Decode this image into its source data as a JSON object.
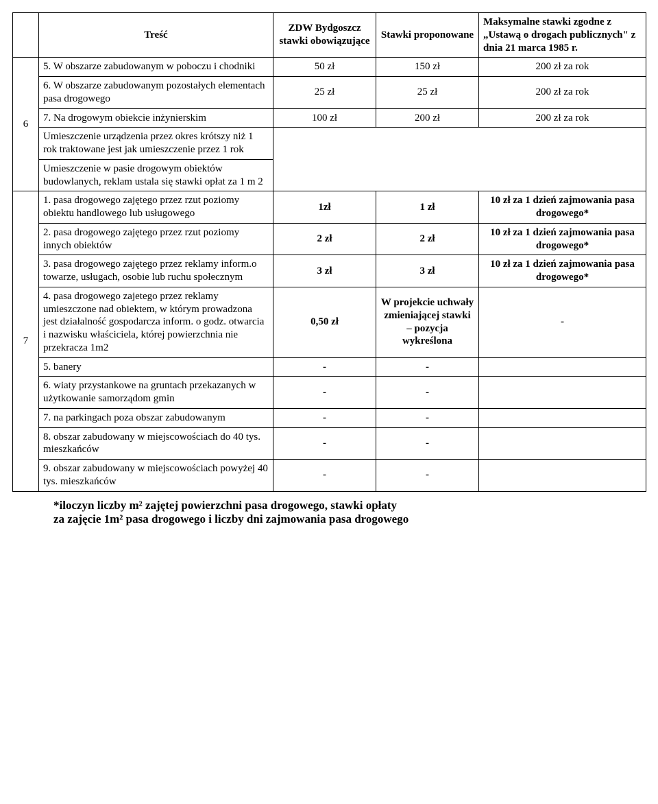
{
  "header": {
    "col_tresc": "Treść",
    "col_zdw": "ZDW Bydgoszcz stawki obowiązujące",
    "col_prop": "Stawki proponowane",
    "col_max": "Maksymalne stawki zgodne z „Ustawą o drogach publicznych\" z dnia 21 marca 1985 r."
  },
  "group6": {
    "num": "6",
    "items": {
      "i5": {
        "label": "5. W obszarze zabudowanym w poboczu i chodniki",
        "zdw": "50 zł",
        "prop": "150 zł",
        "max": "200 zł za rok"
      },
      "i6": {
        "label": "6. W obszarze zabudowanym pozostałych elementach pasa drogowego",
        "zdw": "25 zł",
        "prop": "25 zł",
        "max": "200 zł za rok"
      },
      "i7": {
        "label": "7. Na drogowym obiekcie inżynierskim",
        "zdw": "100 zł",
        "prop": "200 zł",
        "max": "200 zł za rok"
      }
    },
    "note1": "Umieszczenie urządzenia przez okres krótszy niż 1 rok traktowane jest jak umieszczenie przez 1 rok",
    "note2": "Umieszczenie w pasie drogowym obiektów budowlanych, reklam ustala się stawki opłat za 1 m 2"
  },
  "group7": {
    "num": "7",
    "items": {
      "i1": {
        "label": "1. pasa drogowego zajętego przez rzut poziomy obiektu handlowego lub usługowego",
        "zdw": "1zł",
        "prop": "1 zł",
        "max": "10 zł za 1 dzień zajmowania pasa drogowego*"
      },
      "i2": {
        "label": "2. pasa drogowego zajętego przez rzut poziomy innych obiektów",
        "zdw": "2 zł",
        "prop": "2 zł",
        "max": "10 zł za 1 dzień zajmowania pasa drogowego*"
      },
      "i3": {
        "label": "3. pasa drogowego zajętego przez reklamy inform.o towarze, usługach, osobie lub ruchu społecznym",
        "zdw": "3 zł",
        "prop": "3 zł",
        "max": "10 zł za 1 dzień zajmowania pasa drogowego*"
      },
      "i4": {
        "label": "4. pasa drogowego zajetego przez reklamy umieszczone nad obiektem, w którym prowadzona jest działalność gospodarcza inform. o godz. otwarcia i nazwisku właściciela, której powierzchnia nie przekracza 1m2",
        "zdw": "0,50 zł",
        "prop": "W projekcie uchwały zmieniającej stawki – pozycja wykreślona",
        "max": "-"
      },
      "i5": {
        "label": "5. banery",
        "zdw": "-",
        "prop": "-",
        "max": ""
      },
      "i6": {
        "label": "6. wiaty przystankowe na gruntach przekazanych w użytkowanie samorządom gmin",
        "zdw": "-",
        "prop": "-",
        "max": ""
      },
      "i7": {
        "label": "7. na parkingach poza obszar zabudowanym",
        "zdw": "-",
        "prop": "-",
        "max": ""
      },
      "i8": {
        "label": "8. obszar zabudowany w miejscowościach do 40 tys. mieszkańców",
        "zdw": "-",
        "prop": "-",
        "max": ""
      },
      "i9": {
        "label": "9. obszar zabudowany w miejscowościach powyżej 40 tys. mieszkańców",
        "zdw": "-",
        "prop": "-",
        "max": ""
      }
    }
  },
  "footnote_l1": "*iloczyn liczby m² zajętej powierzchni pasa drogowego, stawki opłaty",
  "footnote_l2": "za zajęcie 1m² pasa drogowego i liczby dni zajmowania pasa drogowego"
}
